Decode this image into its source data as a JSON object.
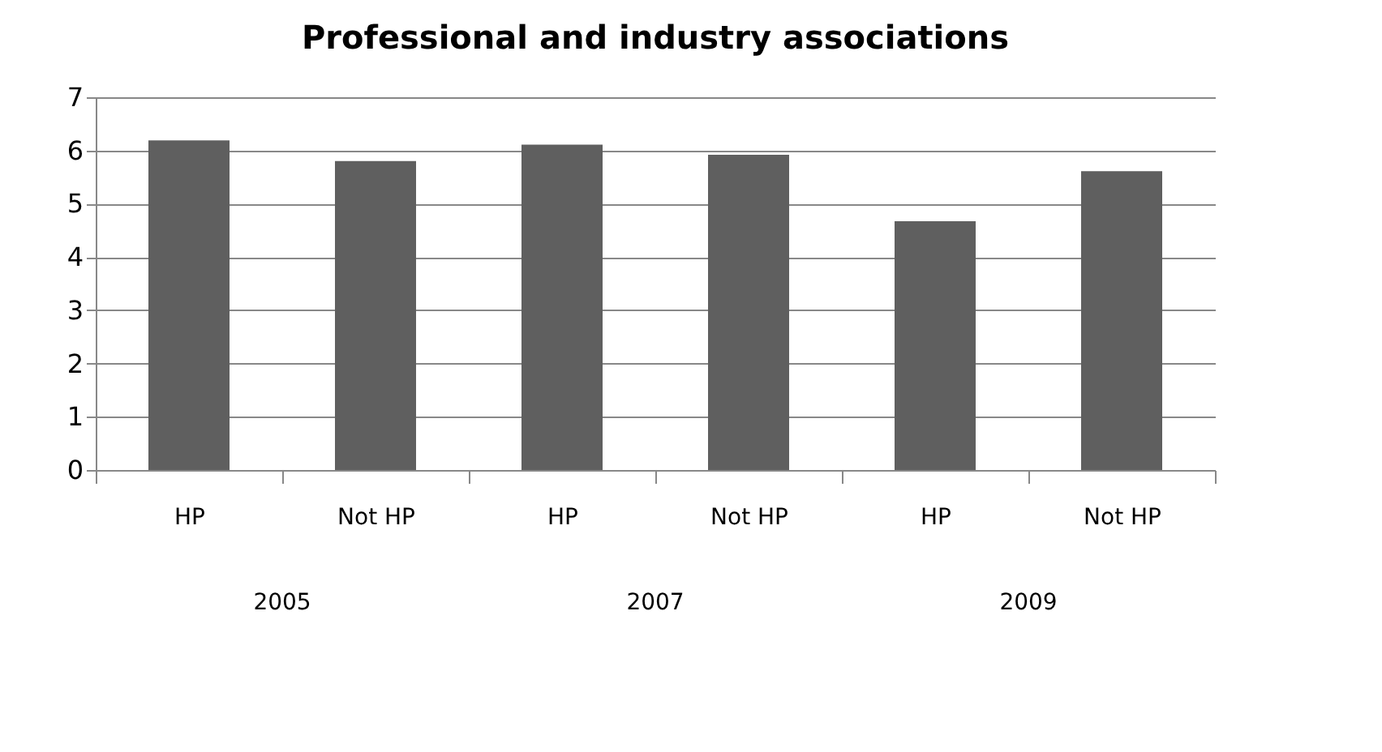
{
  "chart_data": {
    "type": "bar",
    "title": "Professional and industry associations",
    "categories": [
      "HP",
      "Not HP",
      "HP",
      "Not HP",
      "HP",
      "Not HP"
    ],
    "values": [
      6.19,
      5.8,
      6.11,
      5.92,
      4.67,
      5.61
    ],
    "color": "#5f5f5f",
    "ylim": [
      0,
      7
    ],
    "yticks": [
      0,
      1,
      2,
      3,
      4,
      5,
      6,
      7
    ],
    "grid": "y",
    "annotations": [
      "2005",
      "2007",
      "2009"
    ]
  }
}
